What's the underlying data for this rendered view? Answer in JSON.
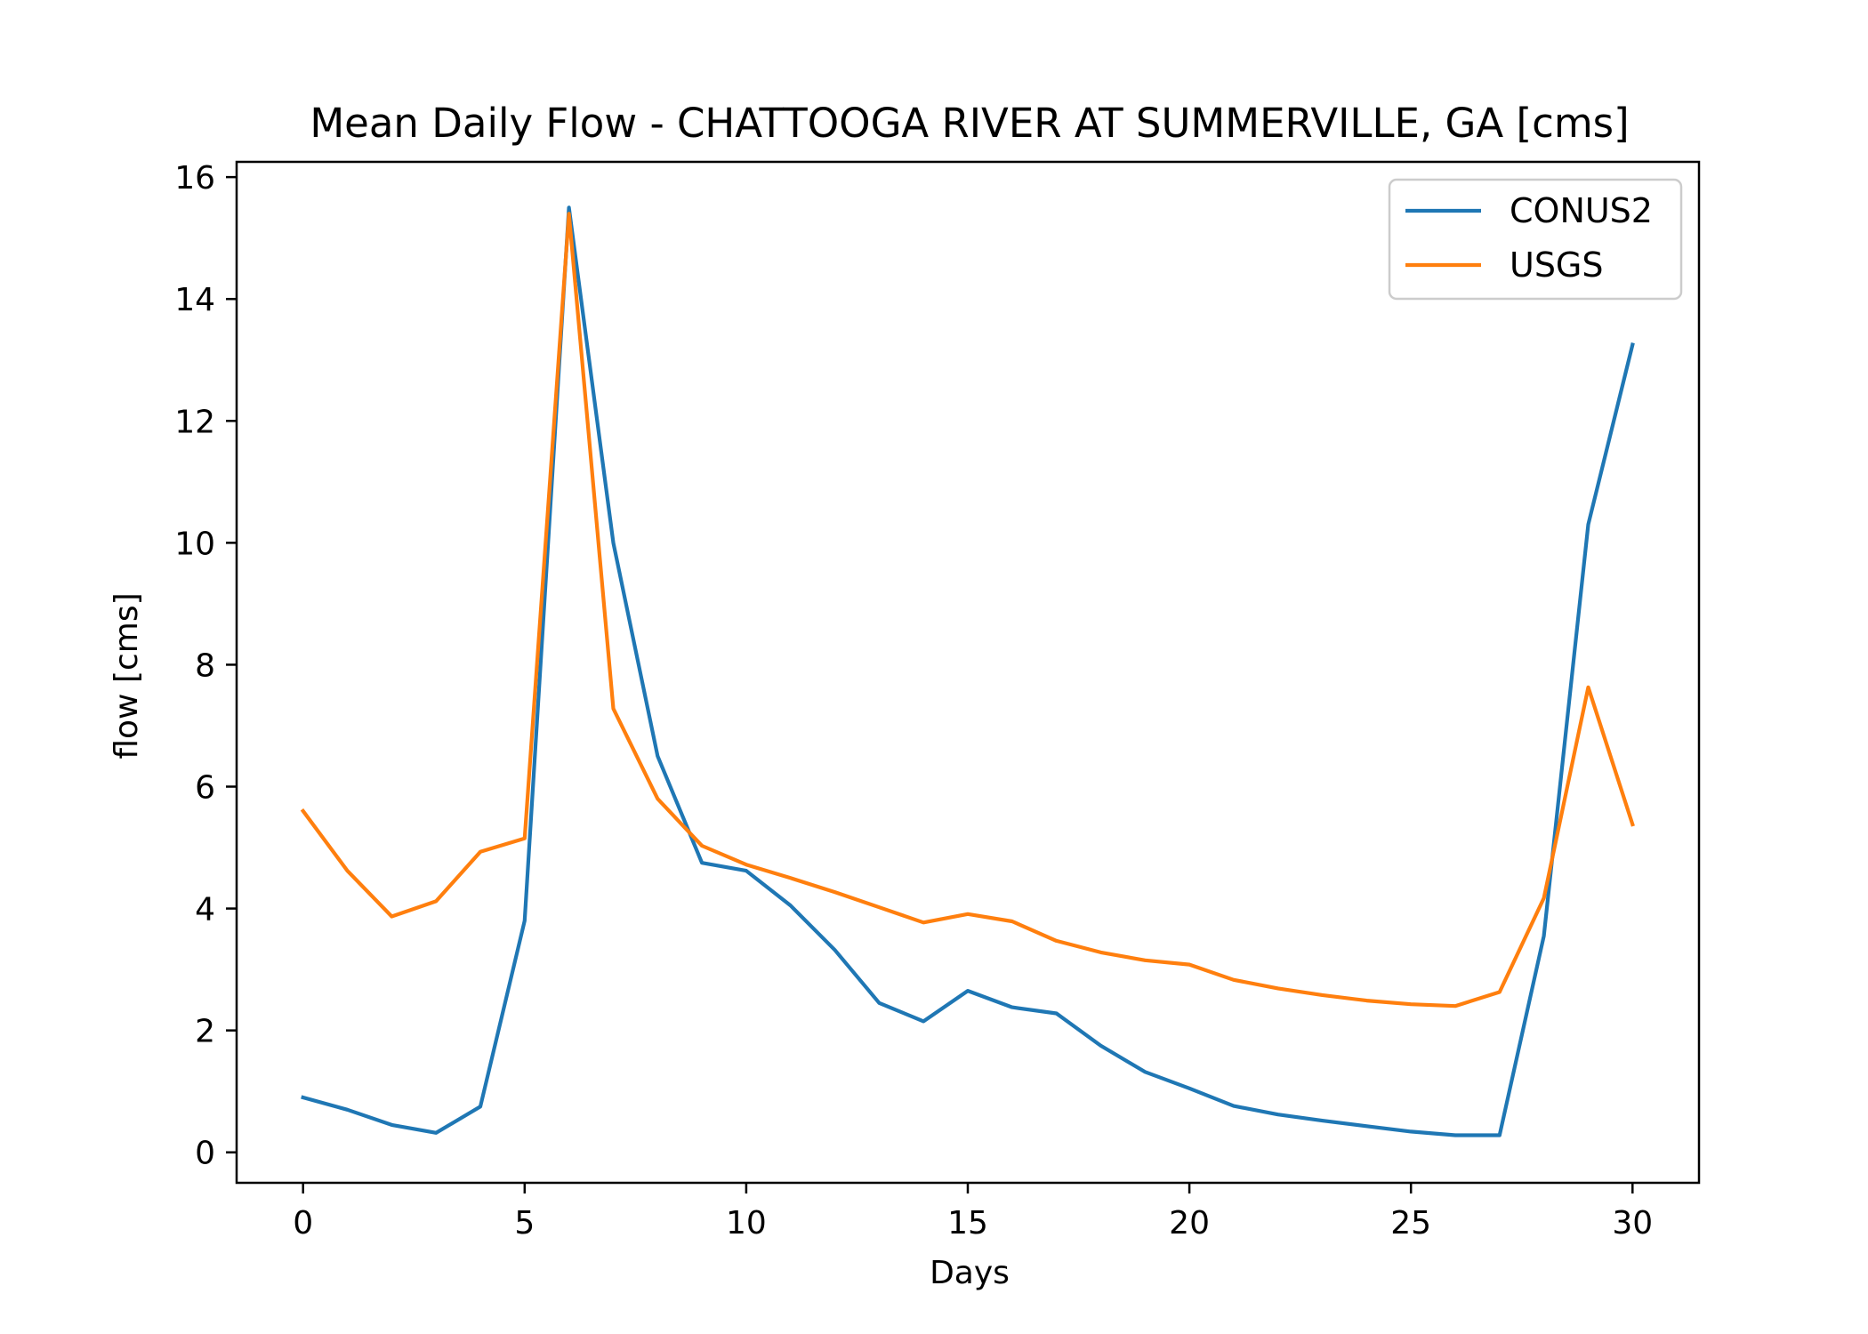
{
  "chart_data": {
    "type": "line",
    "title": "Mean Daily Flow - CHATTOOGA RIVER AT SUMMERVILLE, GA [cms]",
    "xlabel": "Days",
    "ylabel": "flow [cms]",
    "xlim": [
      -1.5,
      31.5
    ],
    "ylim": [
      -0.5,
      16.25
    ],
    "xticks": [
      0,
      5,
      10,
      15,
      20,
      25,
      30
    ],
    "yticks": [
      0,
      2,
      4,
      6,
      8,
      10,
      12,
      14,
      16
    ],
    "grid": false,
    "legend": "top-right",
    "x": [
      0,
      1,
      2,
      3,
      4,
      5,
      6,
      7,
      8,
      9,
      10,
      11,
      12,
      13,
      14,
      15,
      16,
      17,
      18,
      19,
      20,
      21,
      22,
      23,
      24,
      25,
      26,
      27,
      28,
      29,
      30
    ],
    "series": [
      {
        "name": "CONUS2",
        "color": "#1f77b4",
        "values": [
          0.9,
          0.7,
          0.45,
          0.32,
          0.75,
          3.8,
          15.5,
          10.0,
          6.5,
          4.75,
          4.62,
          4.05,
          3.32,
          2.45,
          2.15,
          2.65,
          2.38,
          2.28,
          1.75,
          1.32,
          1.05,
          0.76,
          0.62,
          0.52,
          0.43,
          0.34,
          0.28,
          0.28,
          3.55,
          10.3,
          13.25
        ]
      },
      {
        "name": "USGS",
        "color": "#ff7f0e",
        "values": [
          5.6,
          4.62,
          3.87,
          4.12,
          4.93,
          5.15,
          15.4,
          7.28,
          5.8,
          5.03,
          4.72,
          4.5,
          4.27,
          4.02,
          3.77,
          3.91,
          3.79,
          3.47,
          3.28,
          3.15,
          3.08,
          2.83,
          2.69,
          2.58,
          2.49,
          2.43,
          2.4,
          2.63,
          4.17,
          7.63,
          5.38
        ]
      }
    ]
  }
}
